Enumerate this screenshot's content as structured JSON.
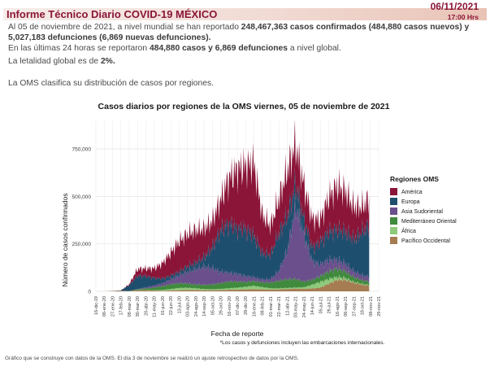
{
  "header": {
    "title": "Informe Técnico Diario COVID-19 MÉXICO",
    "date": "06/11/2021",
    "time": "17:00 Hrs"
  },
  "summary": {
    "p1_pre": "Al 05 de noviembre de 2021, a nivel mundial se han reportado ",
    "p1_bold": "248,467,363 casos confirmados (484,880 casos nuevos) y 5,027,183 defunciones (6,869 nuevas defunciones).",
    "p2_pre": "En las últimas 24 horas se reportaron ",
    "p2_bold": "484,880 casos y 6,869 defunciones",
    "p2_post": " a nivel global.",
    "p3_pre": "La letalidad global es de ",
    "p3_bold": "2%.",
    "p4": "La OMS clasifica su distribución de casos por regiones."
  },
  "chart_data": {
    "type": "area",
    "title": "Casos diarios por regiones de la OMS viernes, 05 de noviembre de 2021",
    "xlabel": "Fecha de reporte",
    "ylabel": "Número de casos confirmados",
    "ylim": [
      0,
      900000
    ],
    "yticks": [
      "0",
      "250,000",
      "500,000",
      "750,000"
    ],
    "ytick_values": [
      0,
      250000,
      500000,
      750000
    ],
    "xticks": [
      "16-dic-19",
      "06-ene-20",
      "27-ene-20",
      "17-feb-20",
      "09-mar-20",
      "30-mar-20",
      "20-abr-20",
      "11-may-20",
      "01-jun-20",
      "22-jun-20",
      "13-jul-20",
      "03-ago-20",
      "24-ago-20",
      "14-sep-20",
      "05-oct-20",
      "26-oct-20",
      "16-nov-20",
      "07-dic-20",
      "28-dic-20",
      "18-ene-21",
      "08-feb-21",
      "01-mar-21",
      "22-mar-21",
      "12-abr-21",
      "03-may-21",
      "24-may-21",
      "14-jun-21",
      "05-jul-21",
      "26-jul-21",
      "16-ago-21",
      "06-sep-21",
      "27-sep-21",
      "18-oct-21",
      "08-nov-21",
      "29-nov-21"
    ],
    "legend_title": "Regiones OMS",
    "legend_position": "right",
    "grid": true,
    "annotation": "*Los casos y defunciones incluyen las embarcaciones internacionales.",
    "x": [
      "16-dic-19",
      "06-ene-20",
      "27-ene-20",
      "17-feb-20",
      "09-mar-20",
      "30-mar-20",
      "20-abr-20",
      "11-may-20",
      "01-jun-20",
      "22-jun-20",
      "13-jul-20",
      "03-ago-20",
      "24-ago-20",
      "14-sep-20",
      "05-oct-20",
      "26-oct-20",
      "16-nov-20",
      "07-dic-20",
      "28-dic-20",
      "18-ene-21",
      "08-feb-21",
      "01-mar-21",
      "22-mar-21",
      "12-abr-21",
      "03-may-21",
      "24-may-21",
      "14-jun-21",
      "05-jul-21",
      "26-jul-21",
      "16-ago-21",
      "06-sep-21",
      "27-sep-21",
      "18-oct-21",
      "05-nov-21"
    ],
    "series": [
      {
        "name": "Pacífico Occidental",
        "color": "#a67c52",
        "values": [
          0,
          0,
          2000,
          3000,
          1000,
          5000,
          6000,
          4000,
          3000,
          4000,
          6000,
          7000,
          7000,
          6000,
          6000,
          7000,
          8000,
          9000,
          10000,
          11000,
          10000,
          9000,
          10000,
          12000,
          14000,
          13000,
          15000,
          20000,
          40000,
          60000,
          60000,
          45000,
          35000,
          30000
        ]
      },
      {
        "name": "África",
        "color": "#8fc97c",
        "values": [
          0,
          0,
          0,
          0,
          0,
          1000,
          1000,
          2000,
          4000,
          8000,
          12000,
          12000,
          9000,
          6000,
          5000,
          6000,
          8000,
          10000,
          14000,
          18000,
          12000,
          7000,
          6000,
          6000,
          6000,
          8000,
          20000,
          30000,
          25000,
          15000,
          10000,
          5000,
          4000,
          3000
        ]
      },
      {
        "name": "Mediterráneo Oriental",
        "color": "#3f8a3c",
        "values": [
          0,
          0,
          0,
          0,
          1000,
          4000,
          8000,
          14000,
          20000,
          25000,
          25000,
          22000,
          20000,
          22000,
          25000,
          30000,
          35000,
          32000,
          25000,
          25000,
          25000,
          30000,
          40000,
          45000,
          45000,
          30000,
          25000,
          30000,
          40000,
          45000,
          35000,
          25000,
          20000,
          18000
        ]
      },
      {
        "name": "Asia Sudoriental",
        "color": "#6b4f8c",
        "values": [
          0,
          0,
          0,
          0,
          0,
          2000,
          5000,
          10000,
          15000,
          25000,
          40000,
          60000,
          80000,
          95000,
          85000,
          60000,
          45000,
          40000,
          30000,
          20000,
          15000,
          18000,
          50000,
          150000,
          380000,
          250000,
          100000,
          60000,
          60000,
          45000,
          40000,
          30000,
          25000,
          25000
        ]
      },
      {
        "name": "Europa",
        "color": "#1e4e6e",
        "values": [
          0,
          0,
          0,
          2000,
          30000,
          70000,
          60000,
          40000,
          25000,
          20000,
          20000,
          30000,
          35000,
          50000,
          110000,
          220000,
          260000,
          240000,
          250000,
          220000,
          140000,
          130000,
          200000,
          180000,
          120000,
          80000,
          70000,
          120000,
          150000,
          160000,
          170000,
          170000,
          230000,
          270000
        ]
      },
      {
        "name": "América",
        "color": "#8a1538",
        "values": [
          0,
          0,
          0,
          0,
          5000,
          35000,
          40000,
          50000,
          80000,
          120000,
          160000,
          170000,
          170000,
          150000,
          140000,
          160000,
          240000,
          310000,
          330000,
          380000,
          200000,
          150000,
          180000,
          240000,
          210000,
          180000,
          150000,
          120000,
          180000,
          230000,
          210000,
          170000,
          130000,
          140000
        ]
      }
    ]
  },
  "footnote": "Gráfico que se construye con datos de la OMS. El día 3 de noviembre se realizó un ajuste retrospectivo de datos por la OMS."
}
